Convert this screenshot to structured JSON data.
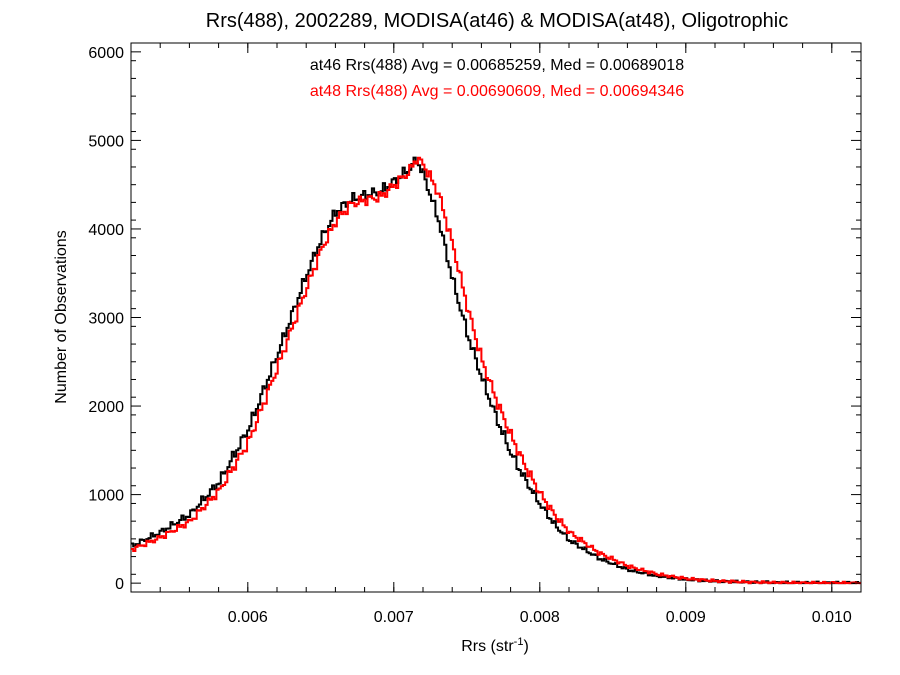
{
  "chart_data": {
    "type": "line",
    "style": "step-histogram",
    "title": "Rrs(488), 2002289, MODISA(at46) & MODISA(at48), Oligotrophic",
    "xlabel": "Rrs (str",
    "xlabel_sup": "-1",
    "xlabel_end": ")",
    "ylabel": "Number of Observations",
    "xlim": [
      0.0052,
      0.0102
    ],
    "ylim": [
      -100,
      6100
    ],
    "x_ticks": [
      0.006,
      0.007,
      0.008,
      0.009,
      0.01
    ],
    "x_tick_labels": [
      "0.006",
      "0.007",
      "0.008",
      "0.009",
      "0.010"
    ],
    "y_ticks": [
      0,
      1000,
      2000,
      3000,
      4000,
      5000,
      6000
    ],
    "y_tick_labels": [
      "0",
      "1000",
      "2000",
      "3000",
      "4000",
      "5000",
      "6000"
    ],
    "grid": false,
    "annotations": [
      {
        "text": "at46 Rrs(488) Avg = 0.00685259, Med = 0.00689018",
        "color": "#000000"
      },
      {
        "text": "at48 Rrs(488) Avg = 0.00690609, Med = 0.00694346",
        "color": "#ff0000"
      }
    ],
    "series": [
      {
        "color": "#000000",
        "x": [
          0.0052,
          0.0054,
          0.0056,
          0.0058,
          0.006,
          0.0062,
          0.0064,
          0.0065,
          0.0066,
          0.0067,
          0.0068,
          0.0069,
          0.007,
          0.0071,
          0.00715,
          0.0072,
          0.0073,
          0.0074,
          0.0075,
          0.0076,
          0.0077,
          0.0078,
          0.0079,
          0.008,
          0.0081,
          0.0082,
          0.0084,
          0.0086,
          0.0088,
          0.009,
          0.0092,
          0.0094,
          0.0096,
          0.0098,
          0.01,
          0.0102
        ],
        "y": [
          420,
          580,
          780,
          1150,
          1750,
          2600,
          3500,
          3900,
          4200,
          4330,
          4380,
          4420,
          4540,
          4680,
          4780,
          4600,
          4100,
          3400,
          2800,
          2300,
          1850,
          1450,
          1150,
          880,
          650,
          480,
          280,
          150,
          80,
          40,
          20,
          10,
          5,
          3,
          2,
          1
        ]
      },
      {
        "color": "#ff0000",
        "x": [
          0.0052,
          0.0054,
          0.0056,
          0.0058,
          0.006,
          0.0062,
          0.0064,
          0.0065,
          0.0066,
          0.0067,
          0.0068,
          0.0069,
          0.007,
          0.0071,
          0.00715,
          0.0072,
          0.0073,
          0.0074,
          0.0075,
          0.0076,
          0.0077,
          0.0078,
          0.0079,
          0.008,
          0.0081,
          0.0082,
          0.0084,
          0.0086,
          0.0088,
          0.009,
          0.0092,
          0.0094,
          0.0096,
          0.0098,
          0.01,
          0.0102
        ],
        "y": [
          380,
          520,
          700,
          1050,
          1600,
          2450,
          3350,
          3780,
          4100,
          4280,
          4330,
          4360,
          4500,
          4650,
          4800,
          4720,
          4400,
          3800,
          3100,
          2500,
          2050,
          1650,
          1300,
          1000,
          760,
          570,
          340,
          190,
          100,
          50,
          25,
          12,
          6,
          3,
          2,
          1
        ]
      }
    ]
  }
}
